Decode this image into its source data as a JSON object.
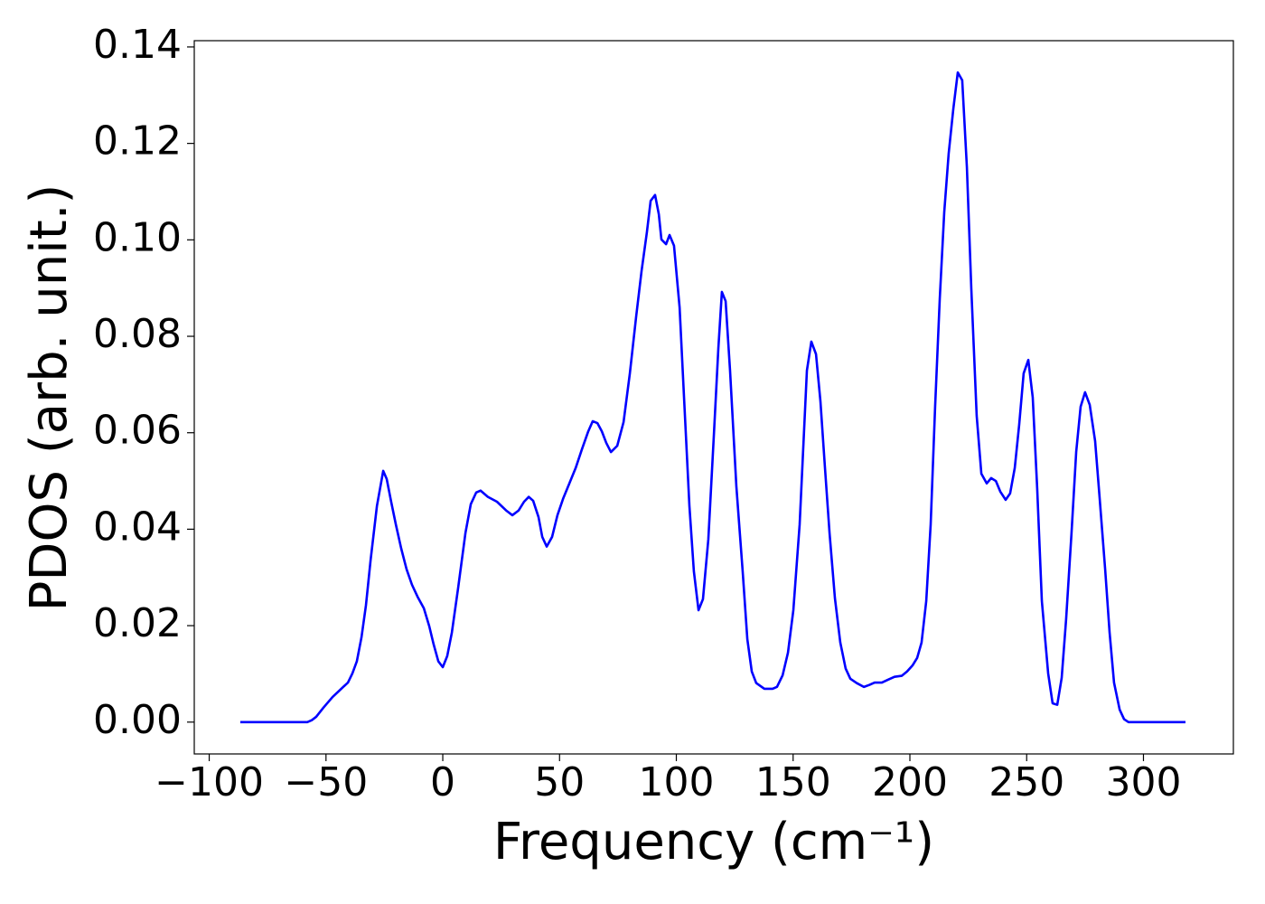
{
  "chart_data": {
    "type": "line",
    "xlabel": "Frequency (cm⁻¹)",
    "ylabel": "PDOS (arb. unit.)",
    "color": "#0000ff",
    "xlim": [
      -106.4,
      338.5
    ],
    "ylim": [
      -0.0066,
      0.1413
    ],
    "xticks": [
      {
        "value": -100,
        "label": "−100"
      },
      {
        "value": -50,
        "label": "−50"
      },
      0,
      50,
      100,
      150,
      200,
      250,
      300
    ],
    "yticks": [
      {
        "value": 0,
        "label": "0.00"
      },
      0.02,
      0.04,
      0.06,
      0.08,
      {
        "value": 0.1,
        "label": "0.10"
      },
      0.12,
      0.14
    ],
    "x": [
      -86.7,
      -58.0,
      -56.1,
      -54.2,
      -51.1,
      -47.2,
      -42.6,
      -40.6,
      -38.7,
      -36.8,
      -34.8,
      -32.9,
      -30.9,
      -28.2,
      -25.5,
      -24.0,
      -22.1,
      -20.1,
      -17.8,
      -15.5,
      -13.2,
      -10.8,
      -8.1,
      -5.8,
      -3.9,
      -1.9,
      0,
      1.9,
      3.9,
      6.6,
      9.7,
      12.0,
      14.3,
      16.2,
      19.3,
      23.2,
      27.1,
      29.8,
      32.5,
      34.8,
      36.8,
      38.7,
      41.0,
      42.6,
      44.5,
      46.8,
      49.1,
      51.5,
      54.2,
      56.9,
      59.6,
      62.3,
      64.2,
      66.2,
      68.1,
      70.0,
      72.0,
      74.7,
      77.4,
      80.1,
      82.8,
      85.1,
      87.4,
      89.0,
      90.9,
      92.5,
      93.6,
      95.6,
      97.1,
      99.0,
      101.4,
      103.3,
      105.6,
      107.5,
      109.5,
      111.4,
      113.7,
      116.1,
      118.0,
      119.5,
      121.1,
      123.0,
      125.7,
      128.4,
      130.4,
      132.3,
      134.2,
      137.7,
      141.2,
      143.1,
      145.5,
      147.8,
      150.1,
      152.8,
      155.9,
      157.8,
      159.8,
      161.7,
      163.6,
      165.6,
      167.9,
      170.2,
      172.5,
      174.5,
      177.2,
      180.3,
      182.6,
      184.9,
      188.0,
      190.7,
      193.4,
      196.5,
      198.8,
      201.2,
      203.1,
      205.0,
      207.0,
      208.9,
      210.8,
      212.8,
      214.7,
      216.6,
      218.6,
      220.5,
      222.4,
      224.4,
      226.3,
      228.6,
      230.6,
      232.9,
      234.8,
      236.8,
      238.7,
      241.0,
      242.9,
      244.9,
      246.8,
      248.7,
      250.7,
      252.6,
      254.5,
      256.5,
      259.2,
      261.1,
      263.1,
      265.0,
      266.9,
      269.2,
      271.2,
      273.1,
      275.0,
      277.0,
      279.3,
      281.2,
      283.6,
      285.5,
      287.4,
      289.8,
      291.7,
      293.6,
      318.0
    ],
    "values": [
      0,
      0,
      0.0004,
      0.0011,
      0.003,
      0.0052,
      0.0073,
      0.0082,
      0.0101,
      0.0126,
      0.0176,
      0.0242,
      0.0336,
      0.0448,
      0.0521,
      0.0504,
      0.0457,
      0.041,
      0.036,
      0.0317,
      0.0285,
      0.026,
      0.0236,
      0.0199,
      0.0161,
      0.0126,
      0.0114,
      0.0137,
      0.0186,
      0.0279,
      0.0392,
      0.0452,
      0.0476,
      0.048,
      0.0467,
      0.0457,
      0.0439,
      0.0429,
      0.0439,
      0.0457,
      0.0467,
      0.0459,
      0.0425,
      0.0384,
      0.0364,
      0.0384,
      0.0429,
      0.0463,
      0.0495,
      0.0527,
      0.0566,
      0.0603,
      0.0624,
      0.062,
      0.0603,
      0.0579,
      0.056,
      0.0573,
      0.0622,
      0.0723,
      0.0841,
      0.0935,
      0.1016,
      0.1081,
      0.1093,
      0.1053,
      0.1001,
      0.0991,
      0.101,
      0.0988,
      0.086,
      0.0673,
      0.0448,
      0.0313,
      0.0232,
      0.0255,
      0.0379,
      0.0598,
      0.0776,
      0.0892,
      0.0873,
      0.0729,
      0.0489,
      0.0313,
      0.0172,
      0.0105,
      0.0081,
      0.0069,
      0.0069,
      0.0073,
      0.0097,
      0.0144,
      0.0232,
      0.041,
      0.0729,
      0.0789,
      0.0763,
      0.0665,
      0.053,
      0.0392,
      0.0257,
      0.0165,
      0.0111,
      0.009,
      0.0081,
      0.0073,
      0.0077,
      0.0082,
      0.0082,
      0.0088,
      0.0094,
      0.0096,
      0.0105,
      0.0118,
      0.0133,
      0.0165,
      0.0251,
      0.041,
      0.0654,
      0.0879,
      0.1057,
      0.1179,
      0.1272,
      0.1347,
      0.1331,
      0.1151,
      0.0898,
      0.0635,
      0.0515,
      0.0495,
      0.0506,
      0.05,
      0.0478,
      0.0461,
      0.0474,
      0.0527,
      0.0617,
      0.0723,
      0.0751,
      0.0673,
      0.0485,
      0.0251,
      0.0101,
      0.0039,
      0.0036,
      0.0092,
      0.0214,
      0.0392,
      0.056,
      0.0654,
      0.0684,
      0.0658,
      0.0583,
      0.0467,
      0.0317,
      0.0186,
      0.0082,
      0.0026,
      0.0006,
      0,
      0
    ]
  }
}
